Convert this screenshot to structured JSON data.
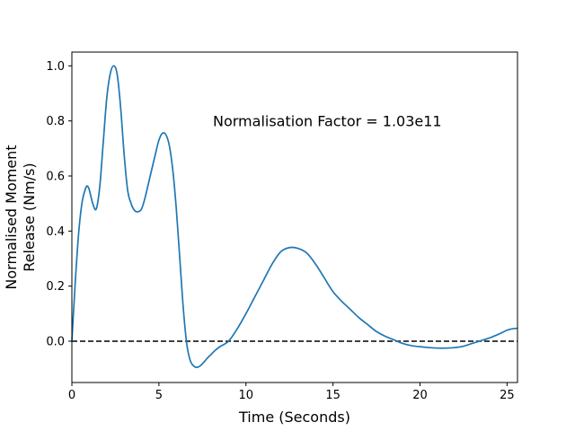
{
  "chart_data": {
    "type": "line",
    "title": "",
    "xlabel": "Time (Seconds)",
    "ylabel_lines": [
      "Normalised Moment",
      "Release (Nm/s)"
    ],
    "xlim": [
      0,
      25.6
    ],
    "ylim": [
      -0.15,
      1.05
    ],
    "xticks": [
      0,
      5,
      10,
      15,
      20,
      25
    ],
    "yticks": [
      0.0,
      0.2,
      0.4,
      0.6,
      0.8,
      1.0
    ],
    "xtick_labels": [
      "0",
      "5",
      "10",
      "15",
      "20",
      "25"
    ],
    "ytick_labels": [
      "0.0",
      "0.2",
      "0.4",
      "0.6",
      "0.8",
      "1.0"
    ],
    "grid": false,
    "annotation": {
      "text": "Normalisation Factor = 1.03e11",
      "x": 8.0,
      "y": 0.8
    },
    "reference_line": {
      "y": 0.0,
      "style": "dashed",
      "color": "#000000"
    },
    "series": [
      {
        "color": "#1f77b4",
        "x": [
          0,
          0.2,
          0.4,
          0.6,
          0.8,
          0.9,
          1.0,
          1.2,
          1.4,
          1.6,
          1.8,
          2.0,
          2.2,
          2.4,
          2.6,
          2.8,
          3.0,
          3.2,
          3.4,
          3.6,
          3.8,
          4.0,
          4.2,
          4.5,
          4.8,
          5.0,
          5.2,
          5.4,
          5.6,
          5.8,
          6.0,
          6.2,
          6.4,
          6.6,
          6.8,
          7.0,
          7.2,
          7.4,
          7.6,
          7.8,
          8.0,
          8.2,
          8.5,
          9.0,
          9.5,
          10.0,
          10.5,
          11.0,
          11.5,
          12.0,
          12.5,
          13.0,
          13.5,
          14.0,
          14.5,
          15.0,
          15.5,
          16.0,
          16.5,
          17.0,
          17.5,
          18.0,
          18.5,
          19.0,
          19.5,
          20.0,
          20.5,
          21.0,
          21.5,
          22.0,
          22.5,
          23.0,
          23.5,
          24.0,
          24.5,
          25.0,
          25.3,
          25.6
        ],
        "y": [
          0.0,
          0.22,
          0.4,
          0.51,
          0.557,
          0.563,
          0.55,
          0.5,
          0.48,
          0.56,
          0.72,
          0.88,
          0.97,
          1.0,
          0.97,
          0.85,
          0.68,
          0.55,
          0.5,
          0.475,
          0.47,
          0.48,
          0.52,
          0.6,
          0.68,
          0.73,
          0.755,
          0.75,
          0.71,
          0.62,
          0.48,
          0.3,
          0.12,
          -0.01,
          -0.07,
          -0.09,
          -0.095,
          -0.088,
          -0.075,
          -0.06,
          -0.048,
          -0.035,
          -0.02,
          0.0,
          0.045,
          0.1,
          0.16,
          0.22,
          0.28,
          0.325,
          0.34,
          0.337,
          0.32,
          0.28,
          0.23,
          0.18,
          0.145,
          0.115,
          0.085,
          0.06,
          0.035,
          0.018,
          0.005,
          -0.008,
          -0.016,
          -0.02,
          -0.023,
          -0.025,
          -0.025,
          -0.023,
          -0.018,
          -0.008,
          0.002,
          0.012,
          0.025,
          0.04,
          0.045,
          0.047
        ]
      }
    ]
  }
}
